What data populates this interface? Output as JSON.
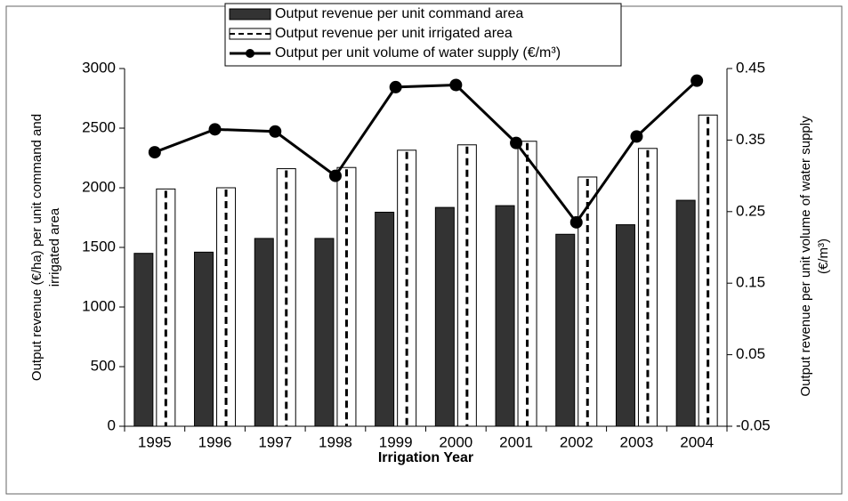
{
  "chart_data": {
    "type": "bar_line",
    "xlabel": "Irrigation Year",
    "ylabel": [
      "Output revenue (€/ha) per unit command and",
      "irrigated area"
    ],
    "y2label": [
      "Output revenue per unit volume of water supply",
      "(€/m³)"
    ],
    "categories": [
      "1995",
      "1996",
      "1997",
      "1998",
      "1999",
      "2000",
      "2001",
      "2002",
      "2003",
      "2004"
    ],
    "series": [
      {
        "name": "Output revenue per unit command area",
        "type": "bar",
        "color": "#333333",
        "values": [
          1450,
          1460,
          1575,
          1575,
          1795,
          1835,
          1850,
          1610,
          1690,
          1895
        ]
      },
      {
        "name": "Output revenue per unit irrigated area",
        "type": "bar",
        "color": "#ffffff",
        "values": [
          1990,
          2000,
          2160,
          2170,
          2315,
          2360,
          2390,
          2090,
          2330,
          2610
        ]
      },
      {
        "name": "Output per unit volume of water supply (€/m³)",
        "type": "line",
        "axis": "y2",
        "color": "#000000",
        "values": [
          0.333,
          0.365,
          0.362,
          0.3,
          0.424,
          0.427,
          0.346,
          0.235,
          0.355,
          0.433
        ]
      }
    ],
    "ylim": [
      0,
      3000
    ],
    "yticks": [
      0,
      500,
      1000,
      1500,
      2000,
      2500,
      3000
    ],
    "y2lim": [
      -0.05,
      0.45
    ],
    "y2ticks": [
      -0.05,
      0.05,
      0.15,
      0.25,
      0.35,
      0.45
    ],
    "legend": "top"
  }
}
